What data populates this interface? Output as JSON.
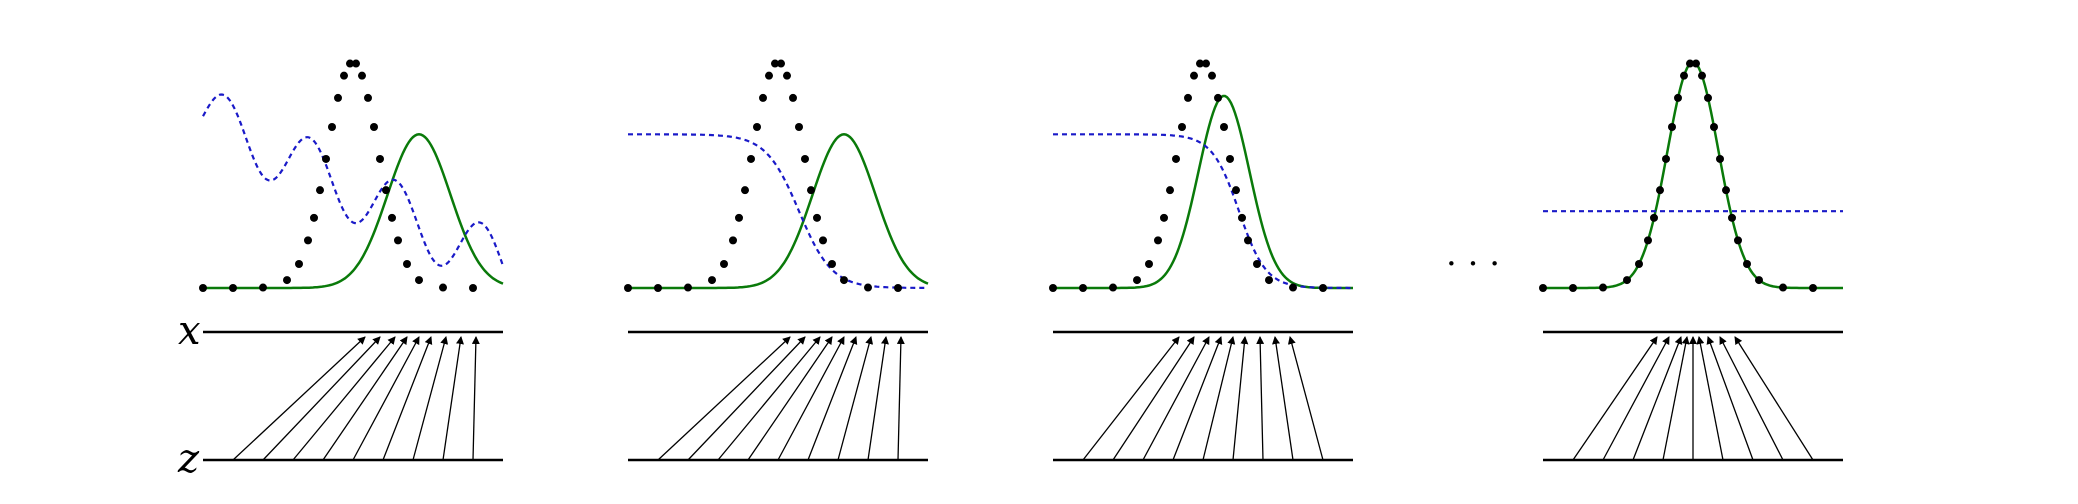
{
  "labels": {
    "x_axis": "x",
    "z_axis": "z",
    "ellipsis": "· · ·"
  },
  "colors": {
    "data_points": "#000000",
    "model_density": "#0a7a0a",
    "discriminator": "#1a1ac8",
    "arrows": "#000000"
  },
  "panels": [
    {
      "name": "step-a",
      "model": {
        "mu": 0.72,
        "sigma": 0.105,
        "amp": 0.68
      },
      "disc": {
        "type": "wavy",
        "base": 0.45,
        "slope": 0.62,
        "amp": 0.14,
        "freq": 22
      },
      "z_sources": [
        0.1,
        0.2,
        0.3,
        0.4,
        0.5,
        0.6,
        0.7,
        0.8,
        0.9
      ],
      "x_targets": [
        0.54,
        0.59,
        0.64,
        0.68,
        0.72,
        0.76,
        0.81,
        0.86,
        0.91
      ]
    },
    {
      "name": "step-b",
      "model": {
        "mu": 0.72,
        "sigma": 0.105,
        "amp": 0.68
      },
      "disc": {
        "type": "sigmoid",
        "high": 0.68,
        "low": 0.0,
        "center": 0.57,
        "k": 0.055
      },
      "z_sources": [
        0.1,
        0.2,
        0.3,
        0.4,
        0.5,
        0.6,
        0.7,
        0.8,
        0.9
      ],
      "x_targets": [
        0.54,
        0.59,
        0.64,
        0.68,
        0.72,
        0.76,
        0.81,
        0.86,
        0.91
      ]
    },
    {
      "name": "step-c",
      "model": {
        "mu": 0.57,
        "sigma": 0.085,
        "amp": 0.85
      },
      "disc": {
        "type": "sigmoid",
        "high": 0.68,
        "low": 0.0,
        "center": 0.62,
        "k": 0.045
      },
      "z_sources": [
        0.1,
        0.2,
        0.3,
        0.4,
        0.5,
        0.6,
        0.7,
        0.8,
        0.9
      ],
      "x_targets": [
        0.42,
        0.47,
        0.52,
        0.56,
        0.6,
        0.64,
        0.69,
        0.74,
        0.79
      ]
    },
    {
      "name": "step-d",
      "model": {
        "mu": 0.5,
        "sigma": 0.085,
        "amp": 1.0
      },
      "disc": {
        "type": "flat",
        "level": 0.34
      },
      "z_sources": [
        0.1,
        0.2,
        0.3,
        0.4,
        0.5,
        0.6,
        0.7,
        0.8,
        0.9
      ],
      "x_targets": [
        0.38,
        0.42,
        0.46,
        0.48,
        0.5,
        0.52,
        0.55,
        0.59,
        0.64
      ]
    }
  ],
  "data_distribution": {
    "mu": 0.5,
    "sigma": 0.085,
    "samples_x": [
      0.0,
      0.1,
      0.2,
      0.28,
      0.32,
      0.35,
      0.37,
      0.39,
      0.41,
      0.43,
      0.45,
      0.47,
      0.49,
      0.51,
      0.53,
      0.55,
      0.57,
      0.59,
      0.61,
      0.63,
      0.65,
      0.68,
      0.72,
      0.8,
      0.9
    ]
  }
}
